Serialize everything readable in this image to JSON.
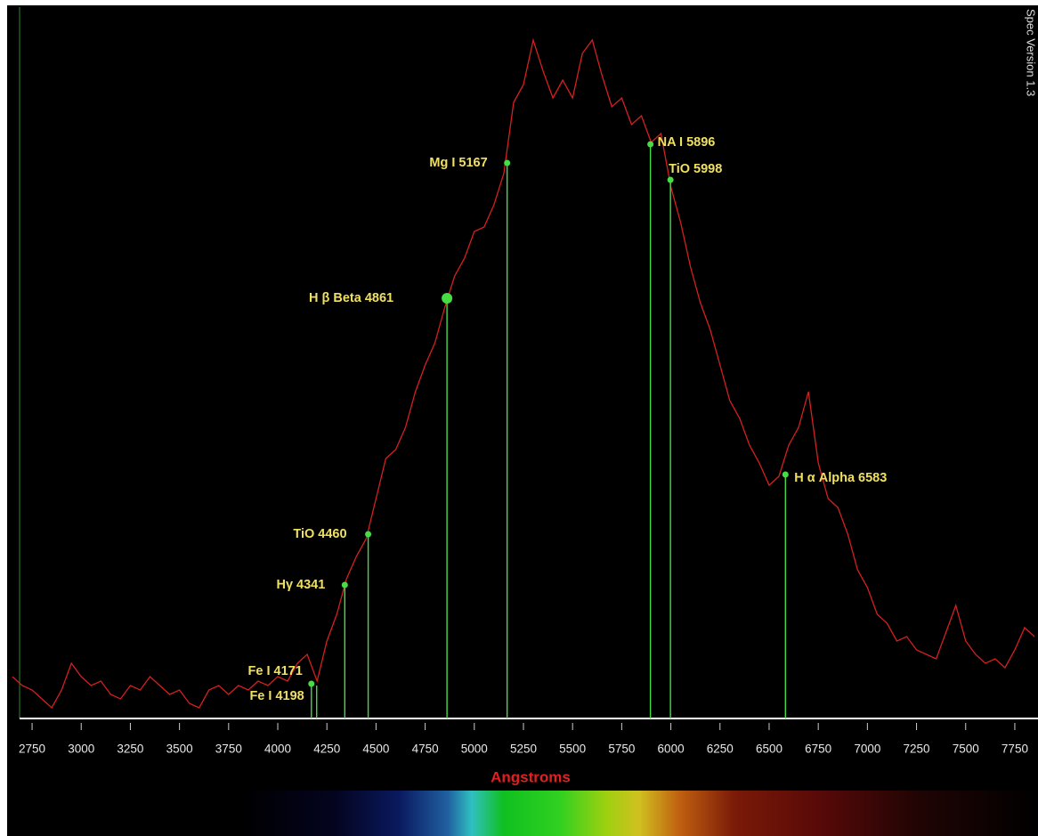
{
  "chart_data": {
    "type": "line",
    "x_label": "Angstroms",
    "version_text": "Spec Version 1.3",
    "x": [
      2650,
      2700,
      2750,
      2800,
      2850,
      2900,
      2950,
      3000,
      3050,
      3100,
      3150,
      3200,
      3250,
      3300,
      3350,
      3400,
      3450,
      3500,
      3550,
      3600,
      3650,
      3700,
      3750,
      3800,
      3850,
      3900,
      3950,
      4000,
      4050,
      4100,
      4150,
      4200,
      4250,
      4300,
      4350,
      4400,
      4450,
      4500,
      4550,
      4600,
      4650,
      4700,
      4750,
      4800,
      4850,
      4900,
      4950,
      5000,
      5050,
      5100,
      5150,
      5200,
      5250,
      5300,
      5350,
      5400,
      5450,
      5500,
      5550,
      5600,
      5650,
      5700,
      5750,
      5800,
      5850,
      5900,
      5950,
      6000,
      6050,
      6100,
      6150,
      6200,
      6250,
      6300,
      6350,
      6400,
      6450,
      6500,
      6550,
      6600,
      6650,
      6700,
      6750,
      6800,
      6850,
      6900,
      6950,
      7000,
      7050,
      7100,
      7150,
      7200,
      7250,
      7300,
      7350,
      7400,
      7450,
      7500,
      7550,
      7600,
      7650,
      7700,
      7750,
      7800,
      7850
    ],
    "series": [
      {
        "color": "#d42020",
        "values": [
          47,
          37,
          32,
          22,
          12,
          32,
          62,
          47,
          37,
          42,
          27,
          22,
          37,
          32,
          47,
          37,
          27,
          32,
          17,
          12,
          32,
          37,
          27,
          37,
          32,
          42,
          37,
          47,
          42,
          62,
          72,
          42,
          87,
          117,
          157,
          182,
          202,
          247,
          292,
          302,
          327,
          367,
          397,
          422,
          462,
          497,
          517,
          547,
          552,
          577,
          612,
          692,
          712,
          762,
          727,
          697,
          717,
          697,
          747,
          762,
          722,
          687,
          697,
          667,
          677,
          647,
          657,
          597,
          557,
          507,
          467,
          437,
          397,
          357,
          337,
          307,
          287,
          262,
          272,
          307,
          327,
          367,
          287,
          247,
          237,
          207,
          167,
          147,
          117,
          107,
          87,
          92,
          77,
          72,
          67,
          97,
          127,
          87,
          72,
          62,
          67,
          57,
          77,
          102,
          92
        ]
      }
    ],
    "xlim": [
      2623,
      7868
    ],
    "ylim": [
      0,
      800
    ],
    "xticks": [
      2750,
      3000,
      3250,
      3500,
      3750,
      4000,
      4250,
      4500,
      4750,
      5000,
      5250,
      5500,
      5750,
      6000,
      6250,
      6500,
      6750,
      7000,
      7250,
      7500,
      7750
    ],
    "markers": [
      {
        "label": "Fe I 4171",
        "wavelength": 4171,
        "intensity": 39
      },
      {
        "label": "Fe I 4198",
        "wavelength": 4198,
        "intensity": 37
      },
      {
        "label": "Hγ 4341",
        "wavelength": 4341,
        "intensity": 150
      },
      {
        "label": "TiO 4460",
        "wavelength": 4460,
        "intensity": 207
      },
      {
        "label": "H β Beta 4861",
        "wavelength": 4861,
        "intensity": 472
      },
      {
        "label": "Mg I 5167",
        "wavelength": 5167,
        "intensity": 624
      },
      {
        "label": "NA I 5896",
        "wavelength": 5896,
        "intensity": 645
      },
      {
        "label": "TiO 5998",
        "wavelength": 5998,
        "intensity": 605
      },
      {
        "label": "H α Alpha 6583",
        "wavelength": 6583,
        "intensity": 274
      }
    ],
    "marker_color": "#44dd44"
  }
}
